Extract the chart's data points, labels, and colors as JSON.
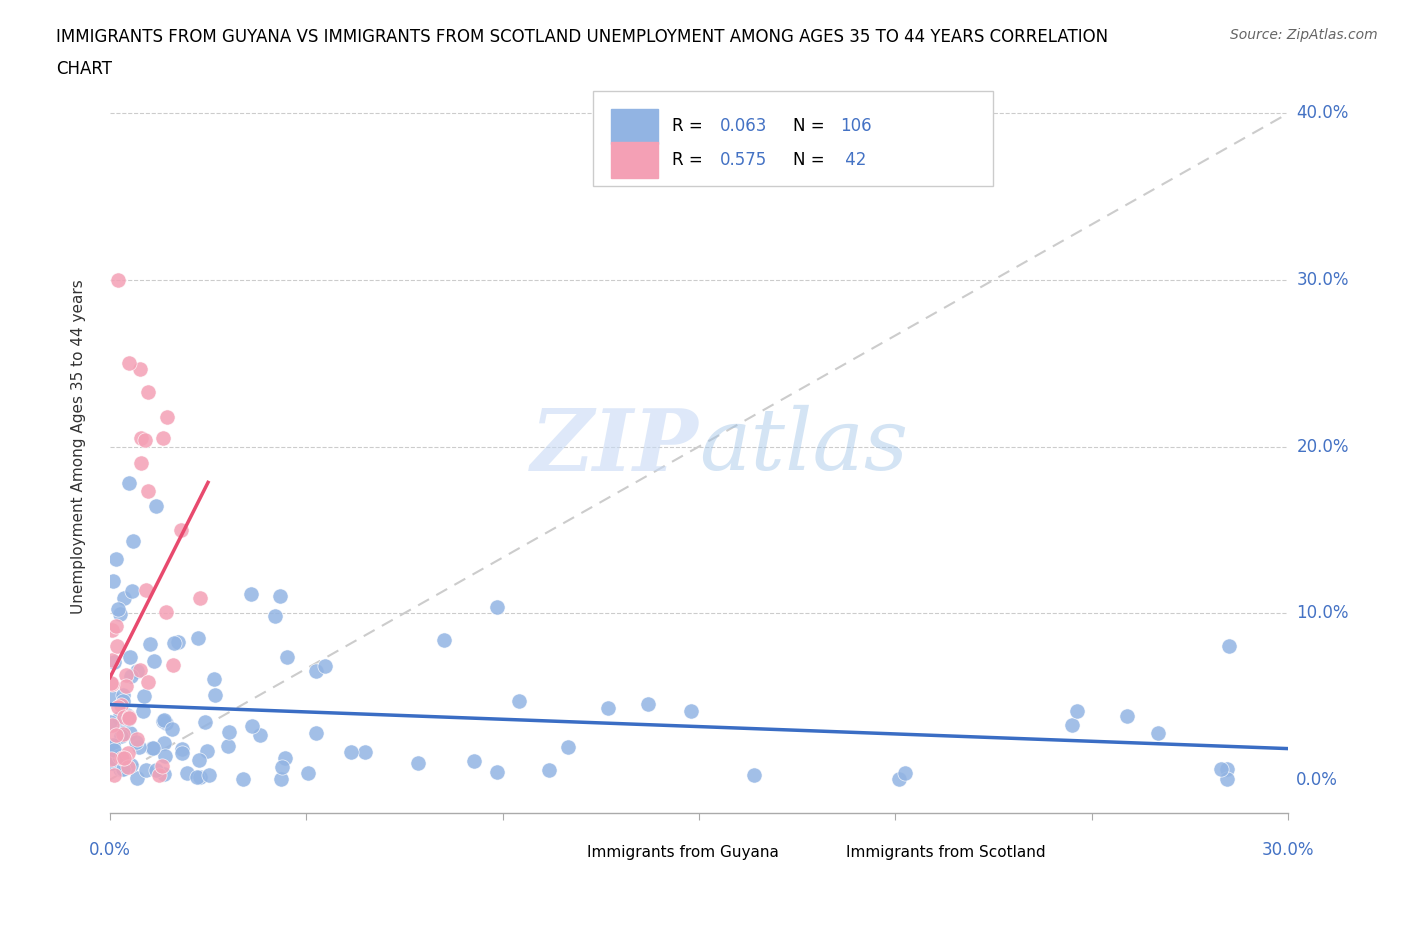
{
  "title_line1": "IMMIGRANTS FROM GUYANA VS IMMIGRANTS FROM SCOTLAND UNEMPLOYMENT AMONG AGES 35 TO 44 YEARS CORRELATION",
  "title_line2": "CHART",
  "source": "Source: ZipAtlas.com",
  "ylabel": "Unemployment Among Ages 35 to 44 years",
  "yticks": [
    "0.0%",
    "10.0%",
    "20.0%",
    "30.0%",
    "40.0%"
  ],
  "ytick_vals": [
    0.0,
    0.1,
    0.2,
    0.3,
    0.4
  ],
  "xlim": [
    0.0,
    0.3
  ],
  "ylim": [
    -0.02,
    0.42
  ],
  "guyana_color": "#92b4e3",
  "scotland_color": "#f4a0b5",
  "guyana_R": 0.063,
  "guyana_N": 106,
  "scotland_R": 0.575,
  "scotland_N": 42,
  "trend_guyana_color": "#3a6dc4",
  "trend_scotland_color": "#e84a6e",
  "watermark_zip": "ZIP",
  "watermark_atlas": "atlas",
  "legend_guyana_label": "Immigrants from Guyana",
  "legend_scotland_label": "Immigrants from Scotland"
}
